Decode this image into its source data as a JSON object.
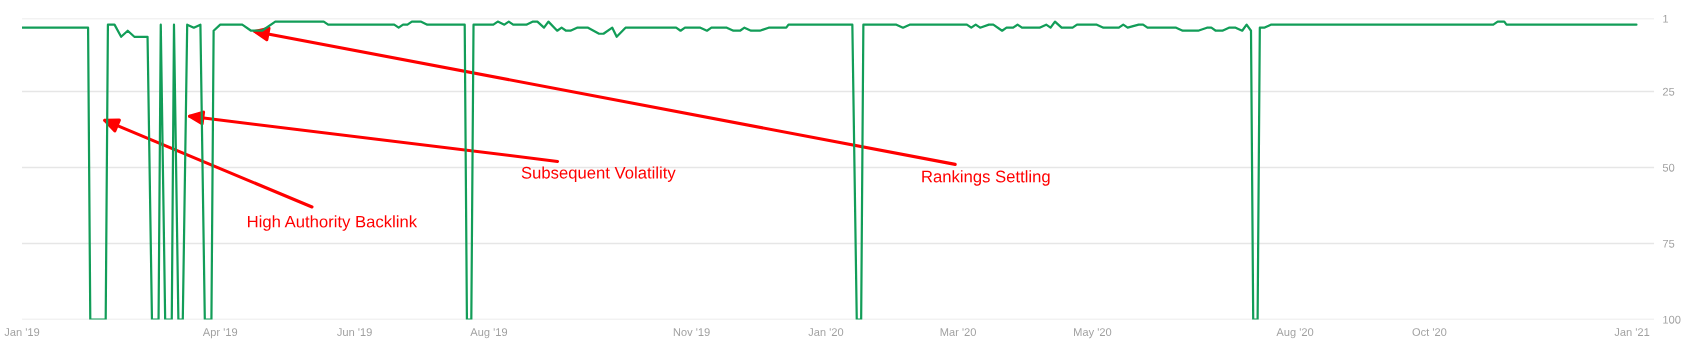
{
  "chart_data": {
    "type": "line",
    "x": [
      "2019-01-01",
      "2019-01-31",
      "2019-02-01",
      "2019-02-08",
      "2019-02-09",
      "2019-02-12",
      "2019-02-15",
      "2019-02-18",
      "2019-02-21",
      "2019-02-27",
      "2019-03-01",
      "2019-03-04",
      "2019-03-05",
      "2019-03-07",
      "2019-03-10",
      "2019-03-11",
      "2019-03-13",
      "2019-03-15",
      "2019-03-17",
      "2019-03-20",
      "2019-03-23",
      "2019-03-25",
      "2019-03-28",
      "2019-03-29",
      "2019-04-01",
      "2019-04-11",
      "2019-04-15",
      "2019-04-20",
      "2019-04-26",
      "2019-05-18",
      "2019-05-20",
      "2019-06-19",
      "2019-06-21",
      "2019-06-23",
      "2019-06-25",
      "2019-06-27",
      "2019-07-01",
      "2019-07-04",
      "2019-07-21",
      "2019-07-22",
      "2019-07-24",
      "2019-07-25",
      "2019-08-03",
      "2019-08-05",
      "2019-08-08",
      "2019-08-10",
      "2019-08-12",
      "2019-08-18",
      "2019-08-21",
      "2019-08-23",
      "2019-08-26",
      "2019-08-28",
      "2019-09-01",
      "2019-09-03",
      "2019-09-05",
      "2019-09-07",
      "2019-09-10",
      "2019-09-15",
      "2019-09-20",
      "2019-09-22",
      "2019-09-26",
      "2019-09-28",
      "2019-10-02",
      "2019-10-25",
      "2019-10-27",
      "2019-10-29",
      "2019-11-05",
      "2019-11-08",
      "2019-11-10",
      "2019-11-17",
      "2019-11-20",
      "2019-11-23",
      "2019-11-25",
      "2019-11-28",
      "2019-12-02",
      "2019-12-06",
      "2019-12-14",
      "2019-12-15",
      "2020-01-13",
      "2020-01-15",
      "2020-01-17",
      "2020-01-18",
      "2020-02-02",
      "2020-02-05",
      "2020-02-08",
      "2020-03-05",
      "2020-03-07",
      "2020-03-09",
      "2020-03-11",
      "2020-03-15",
      "2020-03-17",
      "2020-03-21",
      "2020-03-23",
      "2020-03-26",
      "2020-03-28",
      "2020-03-30",
      "2020-04-07",
      "2020-04-10",
      "2020-04-12",
      "2020-04-14",
      "2020-04-17",
      "2020-04-22",
      "2020-04-24",
      "2020-05-03",
      "2020-05-06",
      "2020-05-13",
      "2020-05-15",
      "2020-05-17",
      "2020-05-22",
      "2020-05-24",
      "2020-05-26",
      "2020-06-08",
      "2020-06-11",
      "2020-06-18",
      "2020-06-22",
      "2020-06-24",
      "2020-06-26",
      "2020-06-29",
      "2020-07-02",
      "2020-07-05",
      "2020-07-08",
      "2020-07-10",
      "2020-07-12",
      "2020-07-13",
      "2020-07-15",
      "2020-07-16",
      "2020-07-18",
      "2020-07-21",
      "2020-10-30",
      "2020-11-01",
      "2020-11-04",
      "2020-11-05",
      "2021-01-03"
    ],
    "series": [
      {
        "color": "#129d58",
        "values": [
          4,
          4,
          100,
          100,
          3,
          3,
          7,
          5,
          7,
          7,
          100,
          100,
          3,
          100,
          100,
          3,
          100,
          100,
          3,
          4,
          3,
          100,
          100,
          5,
          3,
          3,
          5,
          5,
          2,
          2,
          3,
          3,
          4,
          3,
          3,
          2,
          2,
          3,
          3,
          100,
          100,
          3,
          3,
          2,
          3,
          2,
          3,
          3,
          2,
          2,
          4,
          2,
          5,
          4,
          5,
          5,
          4,
          4,
          6,
          6,
          4,
          7,
          4,
          4,
          5,
          4,
          4,
          5,
          4,
          4,
          5,
          5,
          4,
          5,
          5,
          4,
          4,
          3,
          3,
          100,
          100,
          3,
          3,
          4,
          3,
          3,
          4,
          3,
          4,
          3,
          3,
          5,
          4,
          4,
          3,
          4,
          4,
          3,
          4,
          2,
          4,
          4,
          3,
          3,
          4,
          4,
          3,
          4,
          3,
          3,
          4,
          4,
          5,
          5,
          4,
          4,
          5,
          5,
          4,
          4,
          5,
          3,
          5,
          100,
          100,
          4,
          4,
          3,
          3,
          2,
          2,
          3,
          3
        ]
      }
    ],
    "xlim": [
      "2019-01-01",
      "2021-01-11"
    ],
    "xticks": [
      {
        "value": "2019-01-01",
        "label": "Jan '19"
      },
      {
        "value": "2019-04-01",
        "label": "Apr '19"
      },
      {
        "value": "2019-06-01",
        "label": "Jun '19"
      },
      {
        "value": "2019-08-01",
        "label": "Aug '19"
      },
      {
        "value": "2019-11-01",
        "label": "Nov '19"
      },
      {
        "value": "2020-01-01",
        "label": "Jan '20"
      },
      {
        "value": "2020-03-01",
        "label": "Mar '20"
      },
      {
        "value": "2020-05-01",
        "label": "May '20"
      },
      {
        "value": "2020-08-01",
        "label": "Aug '20"
      },
      {
        "value": "2020-10-01",
        "label": "Oct '20"
      },
      {
        "value": "2021-01-01",
        "label": "Jan '21"
      }
    ],
    "ylim": [
      100,
      1
    ],
    "yticks": [
      1,
      25,
      50,
      75,
      100
    ],
    "grid": "y",
    "legend": false,
    "marker": "none",
    "line_style": "solid",
    "annotations": [
      {
        "text": "High Authority Backlink",
        "x": "2019-02-06",
        "y": 34
      },
      {
        "text": "Subsequent Volatility",
        "x": "2019-03-16T09:00",
        "y": 33
      },
      {
        "text": "Rankings Settling",
        "x": "2019-04-15",
        "y": 5
      }
    ]
  }
}
